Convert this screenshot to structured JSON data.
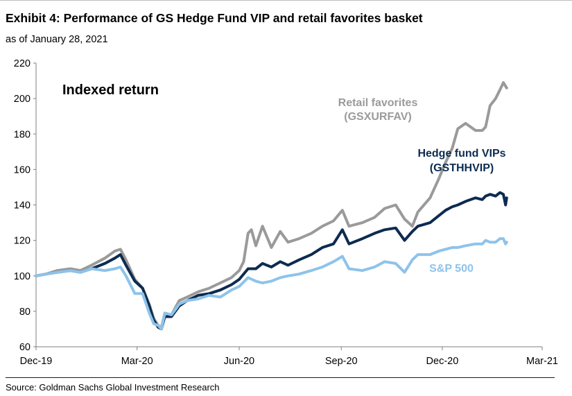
{
  "header": {
    "title": "Exhibit 4: Performance of GS Hedge Fund VIP and retail favorites basket",
    "subtitle": "as of January 28, 2021"
  },
  "footer": {
    "source": "Source: Goldman Sachs Global Investment Research"
  },
  "chart_data": {
    "type": "line",
    "panel_label": "Indexed return",
    "ylim": [
      60,
      220
    ],
    "yticks": [
      60,
      80,
      100,
      120,
      140,
      160,
      180,
      200,
      220
    ],
    "xlim": [
      "2019-12-01",
      "2021-03-01"
    ],
    "xticks": [
      {
        "date": "2019-12-01",
        "label": "Dec-19"
      },
      {
        "date": "2020-03-01",
        "label": "Mar-20"
      },
      {
        "date": "2020-06-01",
        "label": "Jun-20"
      },
      {
        "date": "2020-09-01",
        "label": "Sep-20"
      },
      {
        "date": "2020-12-01",
        "label": "Dec-20"
      },
      {
        "date": "2021-03-01",
        "label": "Mar-21"
      }
    ],
    "grid": false,
    "series": [
      {
        "name": "Retail favorites (GSXURFAV)",
        "label_lines": [
          "Retail favorites",
          "(GSXURFAV)"
        ],
        "color": "#9a9a9a",
        "points": [
          [
            "2019-12-01",
            100
          ],
          [
            "2019-12-10",
            101
          ],
          [
            "2019-12-20",
            103
          ],
          [
            "2020-01-01",
            104
          ],
          [
            "2020-01-10",
            103
          ],
          [
            "2020-01-20",
            106
          ],
          [
            "2020-02-01",
            110
          ],
          [
            "2020-02-10",
            114
          ],
          [
            "2020-02-15",
            115
          ],
          [
            "2020-02-20",
            109
          ],
          [
            "2020-02-28",
            98
          ],
          [
            "2020-03-06",
            93
          ],
          [
            "2020-03-12",
            84
          ],
          [
            "2020-03-16",
            76
          ],
          [
            "2020-03-20",
            72
          ],
          [
            "2020-03-23",
            71
          ],
          [
            "2020-03-26",
            79
          ],
          [
            "2020-04-01",
            78
          ],
          [
            "2020-04-08",
            86
          ],
          [
            "2020-04-15",
            88
          ],
          [
            "2020-04-25",
            91
          ],
          [
            "2020-05-05",
            93
          ],
          [
            "2020-05-15",
            96
          ],
          [
            "2020-05-25",
            99
          ],
          [
            "2020-06-01",
            103
          ],
          [
            "2020-06-05",
            108
          ],
          [
            "2020-06-09",
            124
          ],
          [
            "2020-06-12",
            126
          ],
          [
            "2020-06-16",
            117
          ],
          [
            "2020-06-22",
            128
          ],
          [
            "2020-06-30",
            116
          ],
          [
            "2020-07-08",
            125
          ],
          [
            "2020-07-15",
            119
          ],
          [
            "2020-07-25",
            121
          ],
          [
            "2020-08-05",
            124
          ],
          [
            "2020-08-15",
            128
          ],
          [
            "2020-08-25",
            131
          ],
          [
            "2020-09-02",
            137
          ],
          [
            "2020-09-08",
            128
          ],
          [
            "2020-09-20",
            130
          ],
          [
            "2020-10-01",
            133
          ],
          [
            "2020-10-10",
            138
          ],
          [
            "2020-10-20",
            140
          ],
          [
            "2020-10-28",
            132
          ],
          [
            "2020-11-04",
            128
          ],
          [
            "2020-11-09",
            136
          ],
          [
            "2020-11-20",
            144
          ],
          [
            "2020-11-28",
            155
          ],
          [
            "2020-12-04",
            164
          ],
          [
            "2020-12-10",
            172
          ],
          [
            "2020-12-15",
            183
          ],
          [
            "2020-12-22",
            186
          ],
          [
            "2020-12-31",
            182
          ],
          [
            "2021-01-06",
            182
          ],
          [
            "2021-01-09",
            184
          ],
          [
            "2021-01-13",
            196
          ],
          [
            "2021-01-18",
            200
          ],
          [
            "2021-01-22",
            205
          ],
          [
            "2021-01-25",
            209
          ],
          [
            "2021-01-28",
            206
          ]
        ]
      },
      {
        "name": "Hedge fund VIPs (GSTHHVIP)",
        "label_lines": [
          "Hedge fund VIPs",
          "(GSTHHVIP)"
        ],
        "color": "#0d2b50",
        "points": [
          [
            "2019-12-01",
            100
          ],
          [
            "2019-12-10",
            101
          ],
          [
            "2019-12-20",
            102
          ],
          [
            "2020-01-01",
            103
          ],
          [
            "2020-01-10",
            102
          ],
          [
            "2020-01-20",
            104
          ],
          [
            "2020-02-01",
            107
          ],
          [
            "2020-02-10",
            110
          ],
          [
            "2020-02-15",
            112
          ],
          [
            "2020-02-20",
            106
          ],
          [
            "2020-02-28",
            97
          ],
          [
            "2020-03-06",
            93
          ],
          [
            "2020-03-12",
            83
          ],
          [
            "2020-03-16",
            75
          ],
          [
            "2020-03-20",
            71
          ],
          [
            "2020-03-23",
            70
          ],
          [
            "2020-03-26",
            77
          ],
          [
            "2020-04-01",
            77
          ],
          [
            "2020-04-08",
            83
          ],
          [
            "2020-04-15",
            86
          ],
          [
            "2020-04-25",
            89
          ],
          [
            "2020-05-05",
            90
          ],
          [
            "2020-05-15",
            92
          ],
          [
            "2020-05-25",
            95
          ],
          [
            "2020-06-01",
            98
          ],
          [
            "2020-06-09",
            104
          ],
          [
            "2020-06-16",
            104
          ],
          [
            "2020-06-22",
            107
          ],
          [
            "2020-06-30",
            105
          ],
          [
            "2020-07-08",
            108
          ],
          [
            "2020-07-15",
            106
          ],
          [
            "2020-07-25",
            109
          ],
          [
            "2020-08-05",
            112
          ],
          [
            "2020-08-15",
            116
          ],
          [
            "2020-08-25",
            118
          ],
          [
            "2020-09-02",
            126
          ],
          [
            "2020-09-08",
            118
          ],
          [
            "2020-09-20",
            121
          ],
          [
            "2020-10-01",
            124
          ],
          [
            "2020-10-10",
            126
          ],
          [
            "2020-10-20",
            127
          ],
          [
            "2020-10-28",
            120
          ],
          [
            "2020-11-04",
            125
          ],
          [
            "2020-11-09",
            128
          ],
          [
            "2020-11-20",
            130
          ],
          [
            "2020-11-28",
            134
          ],
          [
            "2020-12-04",
            137
          ],
          [
            "2020-12-10",
            139
          ],
          [
            "2020-12-15",
            140
          ],
          [
            "2020-12-22",
            142
          ],
          [
            "2020-12-31",
            144
          ],
          [
            "2021-01-06",
            143
          ],
          [
            "2021-01-09",
            145
          ],
          [
            "2021-01-13",
            146
          ],
          [
            "2021-01-18",
            145
          ],
          [
            "2021-01-22",
            147
          ],
          [
            "2021-01-25",
            146
          ],
          [
            "2021-01-27",
            140
          ],
          [
            "2021-01-28",
            144
          ]
        ]
      },
      {
        "name": "S&P 500",
        "label_lines": [
          "S&P 500"
        ],
        "color": "#8ec3ea",
        "points": [
          [
            "2019-12-01",
            100
          ],
          [
            "2019-12-10",
            101
          ],
          [
            "2019-12-20",
            102
          ],
          [
            "2020-01-01",
            103
          ],
          [
            "2020-01-10",
            102
          ],
          [
            "2020-01-20",
            104
          ],
          [
            "2020-02-01",
            103
          ],
          [
            "2020-02-10",
            104
          ],
          [
            "2020-02-15",
            105
          ],
          [
            "2020-02-20",
            100
          ],
          [
            "2020-02-28",
            90
          ],
          [
            "2020-03-06",
            90
          ],
          [
            "2020-03-12",
            79
          ],
          [
            "2020-03-16",
            73
          ],
          [
            "2020-03-20",
            72
          ],
          [
            "2020-03-23",
            70
          ],
          [
            "2020-03-26",
            79
          ],
          [
            "2020-04-01",
            78
          ],
          [
            "2020-04-08",
            84
          ],
          [
            "2020-04-15",
            86
          ],
          [
            "2020-04-25",
            87
          ],
          [
            "2020-05-05",
            89
          ],
          [
            "2020-05-15",
            88
          ],
          [
            "2020-05-25",
            92
          ],
          [
            "2020-06-01",
            94
          ],
          [
            "2020-06-09",
            99
          ],
          [
            "2020-06-16",
            97
          ],
          [
            "2020-06-22",
            96
          ],
          [
            "2020-06-30",
            97
          ],
          [
            "2020-07-08",
            99
          ],
          [
            "2020-07-15",
            100
          ],
          [
            "2020-07-25",
            101
          ],
          [
            "2020-08-05",
            103
          ],
          [
            "2020-08-15",
            105
          ],
          [
            "2020-08-25",
            108
          ],
          [
            "2020-09-02",
            111
          ],
          [
            "2020-09-08",
            104
          ],
          [
            "2020-09-20",
            103
          ],
          [
            "2020-10-01",
            105
          ],
          [
            "2020-10-10",
            108
          ],
          [
            "2020-10-20",
            107
          ],
          [
            "2020-10-28",
            102
          ],
          [
            "2020-11-04",
            109
          ],
          [
            "2020-11-09",
            112
          ],
          [
            "2020-11-20",
            112
          ],
          [
            "2020-11-28",
            114
          ],
          [
            "2020-12-04",
            115
          ],
          [
            "2020-12-10",
            116
          ],
          [
            "2020-12-15",
            116
          ],
          [
            "2020-12-22",
            117
          ],
          [
            "2020-12-31",
            118
          ],
          [
            "2021-01-06",
            118
          ],
          [
            "2021-01-09",
            120
          ],
          [
            "2021-01-13",
            119
          ],
          [
            "2021-01-18",
            119
          ],
          [
            "2021-01-22",
            121
          ],
          [
            "2021-01-25",
            121
          ],
          [
            "2021-01-27",
            118
          ],
          [
            "2021-01-28",
            119
          ]
        ]
      }
    ]
  }
}
